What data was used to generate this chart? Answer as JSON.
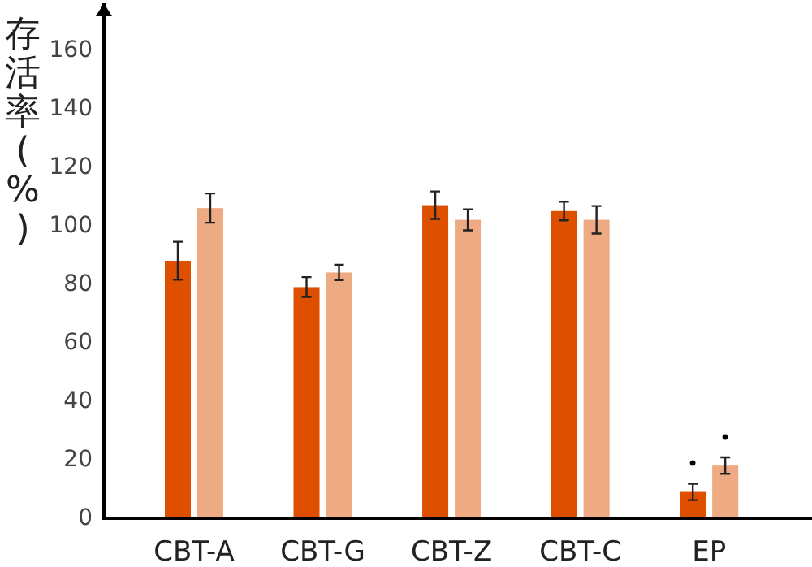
{
  "chart_data": {
    "type": "bar",
    "ylabel": "存活率(%)",
    "categories": [
      "CBT-A",
      "CBT-G",
      "CBT-Z",
      "CBT-C",
      "EP"
    ],
    "series": [
      {
        "color": "#de5000",
        "values": [
          88,
          79,
          107,
          105,
          9
        ],
        "errors": [
          6.5,
          3.4,
          4.7,
          3.2,
          2.8
        ]
      },
      {
        "color": "#eeaa82",
        "values": [
          106,
          84,
          102,
          102,
          18
        ],
        "errors": [
          5,
          2.6,
          3.6,
          4.7,
          2.8
        ]
      }
    ],
    "ylim": [
      0,
      176
    ],
    "yticks": [
      0,
      20,
      40,
      60,
      80,
      100,
      120,
      140,
      160
    ],
    "annotations": [
      "•",
      "•"
    ]
  }
}
